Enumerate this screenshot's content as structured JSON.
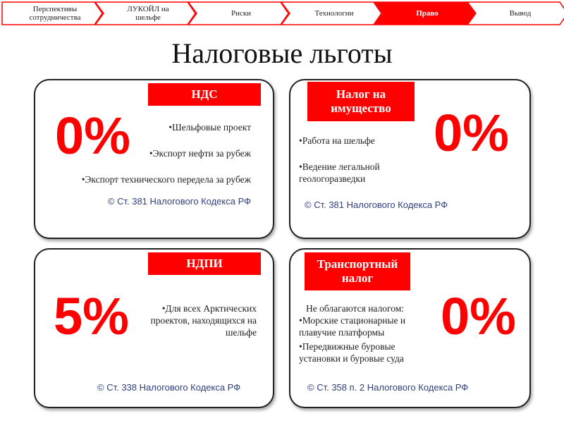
{
  "nav": {
    "steps": [
      {
        "label": "Перспективы сотрудничества",
        "active": false
      },
      {
        "label": "ЛУКОЙЛ на шельфе",
        "active": false
      },
      {
        "label": "Риски",
        "active": false
      },
      {
        "label": "Технологии",
        "active": false
      },
      {
        "label": "Право",
        "active": true
      },
      {
        "label": "Вывод",
        "active": false
      }
    ],
    "accent": "#ff0000"
  },
  "title": "Налоговые льготы",
  "cards": [
    {
      "tag": "НДС",
      "rate": "0%",
      "items": [
        "•Шельфовые проект",
        "•Экспорт нефти за рубеж",
        "•Экспорт технического передела за рубеж"
      ],
      "ref": "© Ст. 381 Налогового Кодекса РФ"
    },
    {
      "tag": "Налог на имущество",
      "rate": "0%",
      "items": [
        "•Работа на шельфе",
        "•Ведение легальной геологоразведки"
      ],
      "ref": "© Ст. 381 Налогового Кодекса РФ"
    },
    {
      "tag": "НДПИ",
      "rate": "5%",
      "items": [
        "•Для всех Арктических проектов, находящихся на шельфе"
      ],
      "ref": "© Ст. 338 Налогового Кодекса РФ"
    },
    {
      "tag": "Транспортный налог",
      "rate": "0%",
      "intro": "Не облагаются налогом:",
      "items": [
        "•Морские стационарные и плавучие платформы",
        "•Передвижные буровые установки и буровые суда"
      ],
      "ref": "© Ст. 358 п. 2 Налогового Кодекса РФ"
    }
  ]
}
